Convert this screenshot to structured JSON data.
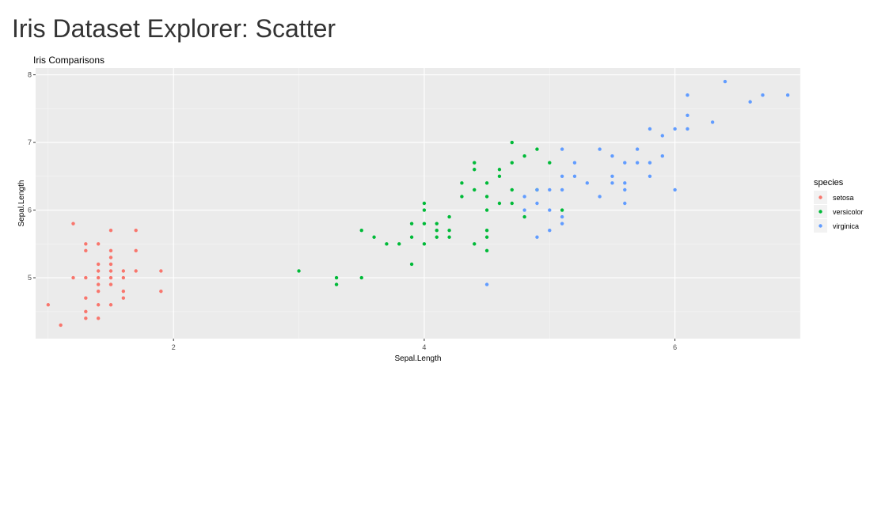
{
  "page": {
    "title": "Iris Dataset Explorer: Scatter"
  },
  "chart_data": {
    "type": "scatter",
    "title": "Iris Comparisons",
    "xlabel": "Sepal.Length",
    "ylabel": "Sepal.Length",
    "xlim": [
      0.9,
      7.0
    ],
    "ylim": [
      4.1,
      8.1
    ],
    "xticks": [
      2,
      4,
      6
    ],
    "yticks": [
      5,
      6,
      7,
      8
    ],
    "grid": true,
    "legend": {
      "title": "species",
      "position": "right"
    },
    "series": [
      {
        "name": "setosa",
        "color": "#F8766D",
        "points": [
          [
            1.0,
            4.6
          ],
          [
            1.1,
            4.3
          ],
          [
            1.2,
            5.8
          ],
          [
            1.2,
            5.0
          ],
          [
            1.3,
            5.5
          ],
          [
            1.3,
            5.4
          ],
          [
            1.3,
            5.0
          ],
          [
            1.3,
            4.7
          ],
          [
            1.3,
            4.5
          ],
          [
            1.3,
            4.4
          ],
          [
            1.4,
            5.5
          ],
          [
            1.4,
            5.2
          ],
          [
            1.4,
            5.1
          ],
          [
            1.4,
            5.0
          ],
          [
            1.4,
            4.9
          ],
          [
            1.4,
            4.8
          ],
          [
            1.4,
            4.6
          ],
          [
            1.4,
            4.4
          ],
          [
            1.5,
            5.7
          ],
          [
            1.5,
            5.4
          ],
          [
            1.5,
            5.3
          ],
          [
            1.5,
            5.2
          ],
          [
            1.5,
            5.1
          ],
          [
            1.5,
            5.0
          ],
          [
            1.5,
            4.9
          ],
          [
            1.5,
            4.6
          ],
          [
            1.6,
            5.1
          ],
          [
            1.6,
            5.0
          ],
          [
            1.6,
            4.8
          ],
          [
            1.6,
            4.7
          ],
          [
            1.7,
            5.7
          ],
          [
            1.7,
            5.4
          ],
          [
            1.7,
            5.1
          ],
          [
            1.9,
            5.1
          ],
          [
            1.9,
            4.8
          ]
        ]
      },
      {
        "name": "versicolor",
        "color": "#00BA38",
        "points": [
          [
            3.0,
            5.1
          ],
          [
            3.3,
            5.0
          ],
          [
            3.3,
            4.9
          ],
          [
            3.5,
            5.7
          ],
          [
            3.5,
            5.0
          ],
          [
            3.6,
            5.6
          ],
          [
            3.7,
            5.5
          ],
          [
            3.8,
            5.5
          ],
          [
            3.9,
            5.8
          ],
          [
            3.9,
            5.6
          ],
          [
            3.9,
            5.2
          ],
          [
            4.0,
            6.1
          ],
          [
            4.0,
            6.0
          ],
          [
            4.0,
            5.8
          ],
          [
            4.0,
            5.5
          ],
          [
            4.1,
            5.8
          ],
          [
            4.1,
            5.7
          ],
          [
            4.1,
            5.6
          ],
          [
            4.2,
            5.9
          ],
          [
            4.2,
            5.7
          ],
          [
            4.2,
            5.6
          ],
          [
            4.3,
            6.4
          ],
          [
            4.3,
            6.2
          ],
          [
            4.4,
            6.7
          ],
          [
            4.4,
            6.6
          ],
          [
            4.4,
            6.3
          ],
          [
            4.4,
            5.5
          ],
          [
            4.5,
            6.4
          ],
          [
            4.5,
            6.2
          ],
          [
            4.5,
            6.0
          ],
          [
            4.5,
            5.7
          ],
          [
            4.5,
            5.6
          ],
          [
            4.5,
            5.4
          ],
          [
            4.6,
            6.6
          ],
          [
            4.6,
            6.5
          ],
          [
            4.6,
            6.1
          ],
          [
            4.7,
            7.0
          ],
          [
            4.7,
            6.7
          ],
          [
            4.7,
            6.3
          ],
          [
            4.7,
            6.1
          ],
          [
            4.8,
            6.8
          ],
          [
            4.8,
            5.9
          ],
          [
            4.9,
            6.9
          ],
          [
            4.9,
            6.3
          ],
          [
            5.0,
            6.7
          ],
          [
            5.1,
            6.0
          ]
        ]
      },
      {
        "name": "virginica",
        "color": "#619CFF",
        "points": [
          [
            4.5,
            4.9
          ],
          [
            4.8,
            6.2
          ],
          [
            4.8,
            6.0
          ],
          [
            4.9,
            6.3
          ],
          [
            4.9,
            6.1
          ],
          [
            4.9,
            5.6
          ],
          [
            5.0,
            6.3
          ],
          [
            5.0,
            6.0
          ],
          [
            5.0,
            5.7
          ],
          [
            5.1,
            6.9
          ],
          [
            5.1,
            6.5
          ],
          [
            5.1,
            6.3
          ],
          [
            5.1,
            5.9
          ],
          [
            5.1,
            5.8
          ],
          [
            5.2,
            6.7
          ],
          [
            5.2,
            6.5
          ],
          [
            5.3,
            6.4
          ],
          [
            5.4,
            6.9
          ],
          [
            5.4,
            6.2
          ],
          [
            5.5,
            6.8
          ],
          [
            5.5,
            6.5
          ],
          [
            5.5,
            6.4
          ],
          [
            5.6,
            6.7
          ],
          [
            5.6,
            6.4
          ],
          [
            5.6,
            6.3
          ],
          [
            5.6,
            6.1
          ],
          [
            5.7,
            6.9
          ],
          [
            5.7,
            6.7
          ],
          [
            5.8,
            7.2
          ],
          [
            5.8,
            6.7
          ],
          [
            5.8,
            6.5
          ],
          [
            5.9,
            7.1
          ],
          [
            5.9,
            6.8
          ],
          [
            6.0,
            7.2
          ],
          [
            6.0,
            6.3
          ],
          [
            6.1,
            7.7
          ],
          [
            6.1,
            7.4
          ],
          [
            6.1,
            7.2
          ],
          [
            6.3,
            7.3
          ],
          [
            6.4,
            7.9
          ],
          [
            6.6,
            7.6
          ],
          [
            6.7,
            7.7
          ],
          [
            6.9,
            7.7
          ]
        ]
      }
    ]
  }
}
